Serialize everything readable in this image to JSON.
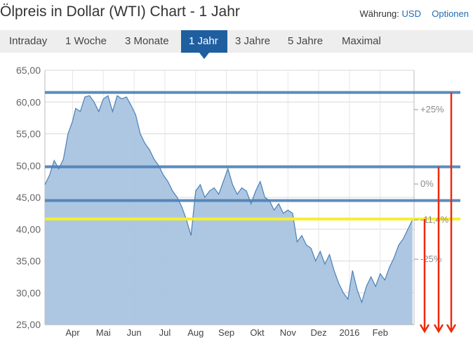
{
  "header": {
    "title": "Ölpreis in Dollar (WTI) Chart - 1 Jahr",
    "currency_label": "Währung:",
    "currency_value": "USD",
    "options_label": "Optionen"
  },
  "tabs": [
    {
      "label": "Intraday",
      "active": false
    },
    {
      "label": "1 Woche",
      "active": false
    },
    {
      "label": "3 Monate",
      "active": false
    },
    {
      "label": "1 Jahr",
      "active": true
    },
    {
      "label": "3 Jahre",
      "active": false
    },
    {
      "label": "5 Jahre",
      "active": false
    },
    {
      "label": "Maximal",
      "active": false
    }
  ],
  "chart_data": {
    "type": "area",
    "title": "",
    "xlabel": "",
    "ylabel": "",
    "ylim": [
      25,
      65
    ],
    "xlim": [
      0,
      12
    ],
    "grid": true,
    "y_ticks": [
      "25,00",
      "30,00",
      "35,00",
      "40,00",
      "45,00",
      "50,00",
      "55,00",
      "60,00",
      "65,00"
    ],
    "x_ticks": [
      {
        "label": "Apr",
        "x": 0.9
      },
      {
        "label": "Mai",
        "x": 1.9
      },
      {
        "label": "Jun",
        "x": 2.9
      },
      {
        "label": "Jul",
        "x": 3.9
      },
      {
        "label": "Aug",
        "x": 4.9
      },
      {
        "label": "Sep",
        "x": 5.9
      },
      {
        "label": "Okt",
        "x": 6.9
      },
      {
        "label": "Nov",
        "x": 7.9
      },
      {
        "label": "Dez",
        "x": 8.9
      },
      {
        "label": "2016",
        "x": 9.9
      },
      {
        "label": "Feb",
        "x": 10.9
      }
    ],
    "series": [
      {
        "name": "",
        "color": "#4a7fb5",
        "fill": "#a9c4e0",
        "x": [
          0,
          0.15,
          0.3,
          0.45,
          0.6,
          0.75,
          0.9,
          1.0,
          1.15,
          1.3,
          1.45,
          1.6,
          1.75,
          1.9,
          2.05,
          2.2,
          2.35,
          2.5,
          2.65,
          2.8,
          2.95,
          3.1,
          3.25,
          3.4,
          3.55,
          3.7,
          3.85,
          4.0,
          4.15,
          4.3,
          4.45,
          4.6,
          4.75,
          4.9,
          5.05,
          5.2,
          5.35,
          5.5,
          5.65,
          5.8,
          5.95,
          6.1,
          6.25,
          6.4,
          6.55,
          6.7,
          6.85,
          7.0,
          7.15,
          7.3,
          7.45,
          7.6,
          7.75,
          7.9,
          8.05,
          8.2,
          8.35,
          8.5,
          8.65,
          8.8,
          8.95,
          9.1,
          9.25,
          9.4,
          9.55,
          9.7,
          9.85,
          10.0,
          10.15,
          10.3,
          10.45,
          10.6,
          10.75,
          10.9,
          11.05,
          11.2,
          11.35,
          11.5,
          11.65,
          11.8,
          11.95
        ],
        "values": [
          47.0,
          48.5,
          50.8,
          49.5,
          51.0,
          55.0,
          57.0,
          59.0,
          58.5,
          60.8,
          61.0,
          60.0,
          58.5,
          60.5,
          61.0,
          58.5,
          61.0,
          60.5,
          60.8,
          59.5,
          58.0,
          55.0,
          53.5,
          52.5,
          51.0,
          50.0,
          48.5,
          47.5,
          46.0,
          45.0,
          43.5,
          41.5,
          39.0,
          46.0,
          47.0,
          45.0,
          46.0,
          46.5,
          45.5,
          47.5,
          49.5,
          47.0,
          45.5,
          46.5,
          46.0,
          44.0,
          46.0,
          47.5,
          45.0,
          44.5,
          43.0,
          44.0,
          42.5,
          43.0,
          42.5,
          38.0,
          39.0,
          37.5,
          37.0,
          35.0,
          36.5,
          34.5,
          36.0,
          33.5,
          31.5,
          30.0,
          29.0,
          33.5,
          30.5,
          28.5,
          31.0,
          32.5,
          31.0,
          33.0,
          32.0,
          34.0,
          35.5,
          37.5,
          38.5,
          40.0,
          41.5
        ]
      }
    ],
    "hlines": [
      61.5,
      49.8,
      44.5,
      41.6
    ],
    "highlight_line": 41.6,
    "colors": {
      "band": "#4a7fb5",
      "highlight": "#f5ef2f",
      "arrow": "#ee2a0a",
      "label": "#8a8a8a"
    },
    "annotations": {
      "right_ticks": [
        "+25%",
        "0%",
        "-11,4%",
        "-25%"
      ],
      "arrows": [
        {
          "from": 41.6,
          "to": 25
        },
        {
          "from": 49.8,
          "to": 25
        },
        {
          "from": 61.5,
          "to": 25
        }
      ]
    }
  }
}
